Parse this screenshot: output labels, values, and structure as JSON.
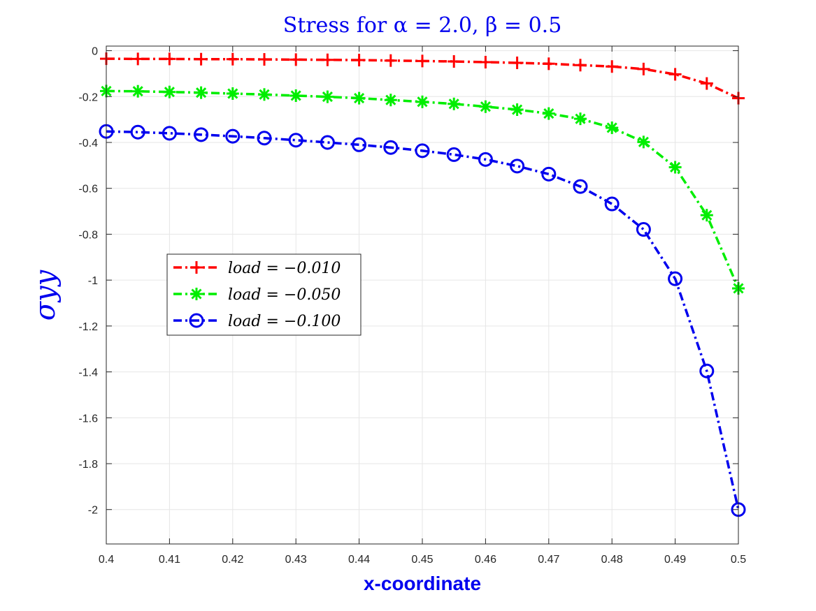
{
  "chart_data": {
    "type": "line",
    "title": "Stress for α = 2.0, β = 0.5",
    "xlabel": "x-coordinate",
    "ylabel": "σyy",
    "xlim": [
      0.4,
      0.5
    ],
    "ylim": [
      -2.15,
      0.02
    ],
    "xticks": [
      0.4,
      0.41,
      0.42,
      0.43,
      0.44,
      0.45,
      0.46,
      0.47,
      0.48,
      0.49,
      0.5
    ],
    "xtick_labels": [
      "0.4",
      "0.41",
      "0.42",
      "0.43",
      "0.44",
      "0.45",
      "0.46",
      "0.47",
      "0.48",
      "0.49",
      "0.5"
    ],
    "yticks": [
      0,
      -0.2,
      -0.4,
      -0.6,
      -0.8,
      -1,
      -1.2,
      -1.4,
      -1.6,
      -1.8,
      -2
    ],
    "ytick_labels": [
      "0",
      "-0.2",
      "-0.4",
      "-0.6",
      "-0.8",
      "-1",
      "-1.2",
      "-1.4",
      "-1.6",
      "-1.8",
      "-2"
    ],
    "grid": true,
    "legend_position": "middle-left",
    "x": [
      0.4,
      0.405,
      0.41,
      0.415,
      0.42,
      0.425,
      0.43,
      0.435,
      0.44,
      0.445,
      0.45,
      0.455,
      0.46,
      0.465,
      0.47,
      0.475,
      0.48,
      0.485,
      0.49,
      0.495,
      0.5
    ],
    "series": [
      {
        "name": "load = −0.010",
        "color": "#ff0000",
        "marker": "plus",
        "values": [
          -0.035,
          -0.036,
          -0.036,
          -0.037,
          -0.037,
          -0.038,
          -0.039,
          -0.04,
          -0.041,
          -0.043,
          -0.045,
          -0.047,
          -0.05,
          -0.053,
          -0.057,
          -0.063,
          -0.069,
          -0.08,
          -0.103,
          -0.143,
          -0.207
        ]
      },
      {
        "name": "load = −0.050",
        "color": "#00ee00",
        "marker": "asterisk",
        "values": [
          -0.176,
          -0.177,
          -0.18,
          -0.183,
          -0.187,
          -0.191,
          -0.196,
          -0.201,
          -0.207,
          -0.215,
          -0.223,
          -0.232,
          -0.244,
          -0.257,
          -0.274,
          -0.297,
          -0.336,
          -0.398,
          -0.508,
          -0.717,
          -1.036
        ]
      },
      {
        "name": "load = −0.100",
        "color": "#0000ee",
        "marker": "circle",
        "values": [
          -0.352,
          -0.355,
          -0.36,
          -0.366,
          -0.373,
          -0.381,
          -0.39,
          -0.4,
          -0.41,
          -0.422,
          -0.436,
          -0.453,
          -0.474,
          -0.503,
          -0.538,
          -0.592,
          -0.668,
          -0.779,
          -0.994,
          -1.396,
          -2.0
        ]
      }
    ]
  }
}
